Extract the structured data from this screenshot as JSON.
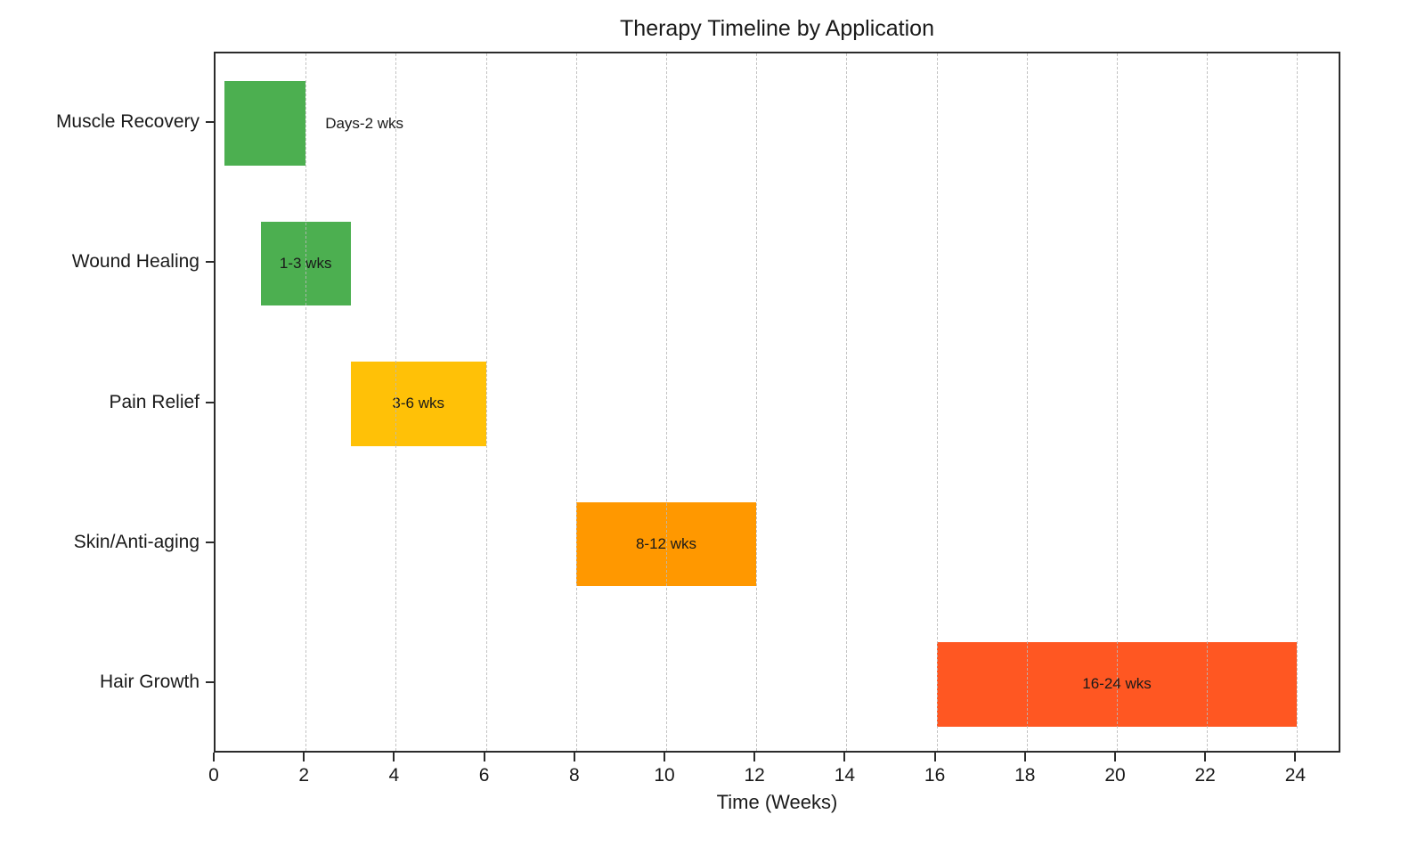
{
  "title": "Therapy Timeline by Application",
  "chart_data": {
    "type": "bar",
    "subtype": "horizontal-range-gantt",
    "title": "Therapy Timeline by Application",
    "xlabel": "Time (Weeks)",
    "ylabel": "",
    "xlim": [
      0,
      25
    ],
    "xticks": [
      0,
      2,
      4,
      6,
      8,
      10,
      12,
      14,
      16,
      18,
      20,
      22,
      24
    ],
    "grid": "vertical-dashed",
    "legend": "none",
    "categories": [
      "Muscle Recovery",
      "Wound Healing",
      "Pain Relief",
      "Skin/Anti-aging",
      "Hair Growth"
    ],
    "bars": [
      {
        "category": "Muscle Recovery",
        "start": 0.2,
        "end": 2,
        "label": "Days-2 wks",
        "color": "#4CAF50",
        "label_placement": "outside"
      },
      {
        "category": "Wound Healing",
        "start": 1,
        "end": 3,
        "label": "1-3 wks",
        "color": "#4CAF50",
        "label_placement": "inside"
      },
      {
        "category": "Pain Relief",
        "start": 3,
        "end": 6,
        "label": "3-6 wks",
        "color": "#FFC107",
        "label_placement": "inside"
      },
      {
        "category": "Skin/Anti-aging",
        "start": 8,
        "end": 12,
        "label": "8-12 wks",
        "color": "#FF9800",
        "label_placement": "inside"
      },
      {
        "category": "Hair Growth",
        "start": 16,
        "end": 24,
        "label": "16-24 wks",
        "color": "#FF5722",
        "label_placement": "inside"
      }
    ],
    "colors": {
      "axis": "#2b2b2b",
      "grid": "#b9b9b9",
      "text": "#1a1a1a"
    }
  }
}
